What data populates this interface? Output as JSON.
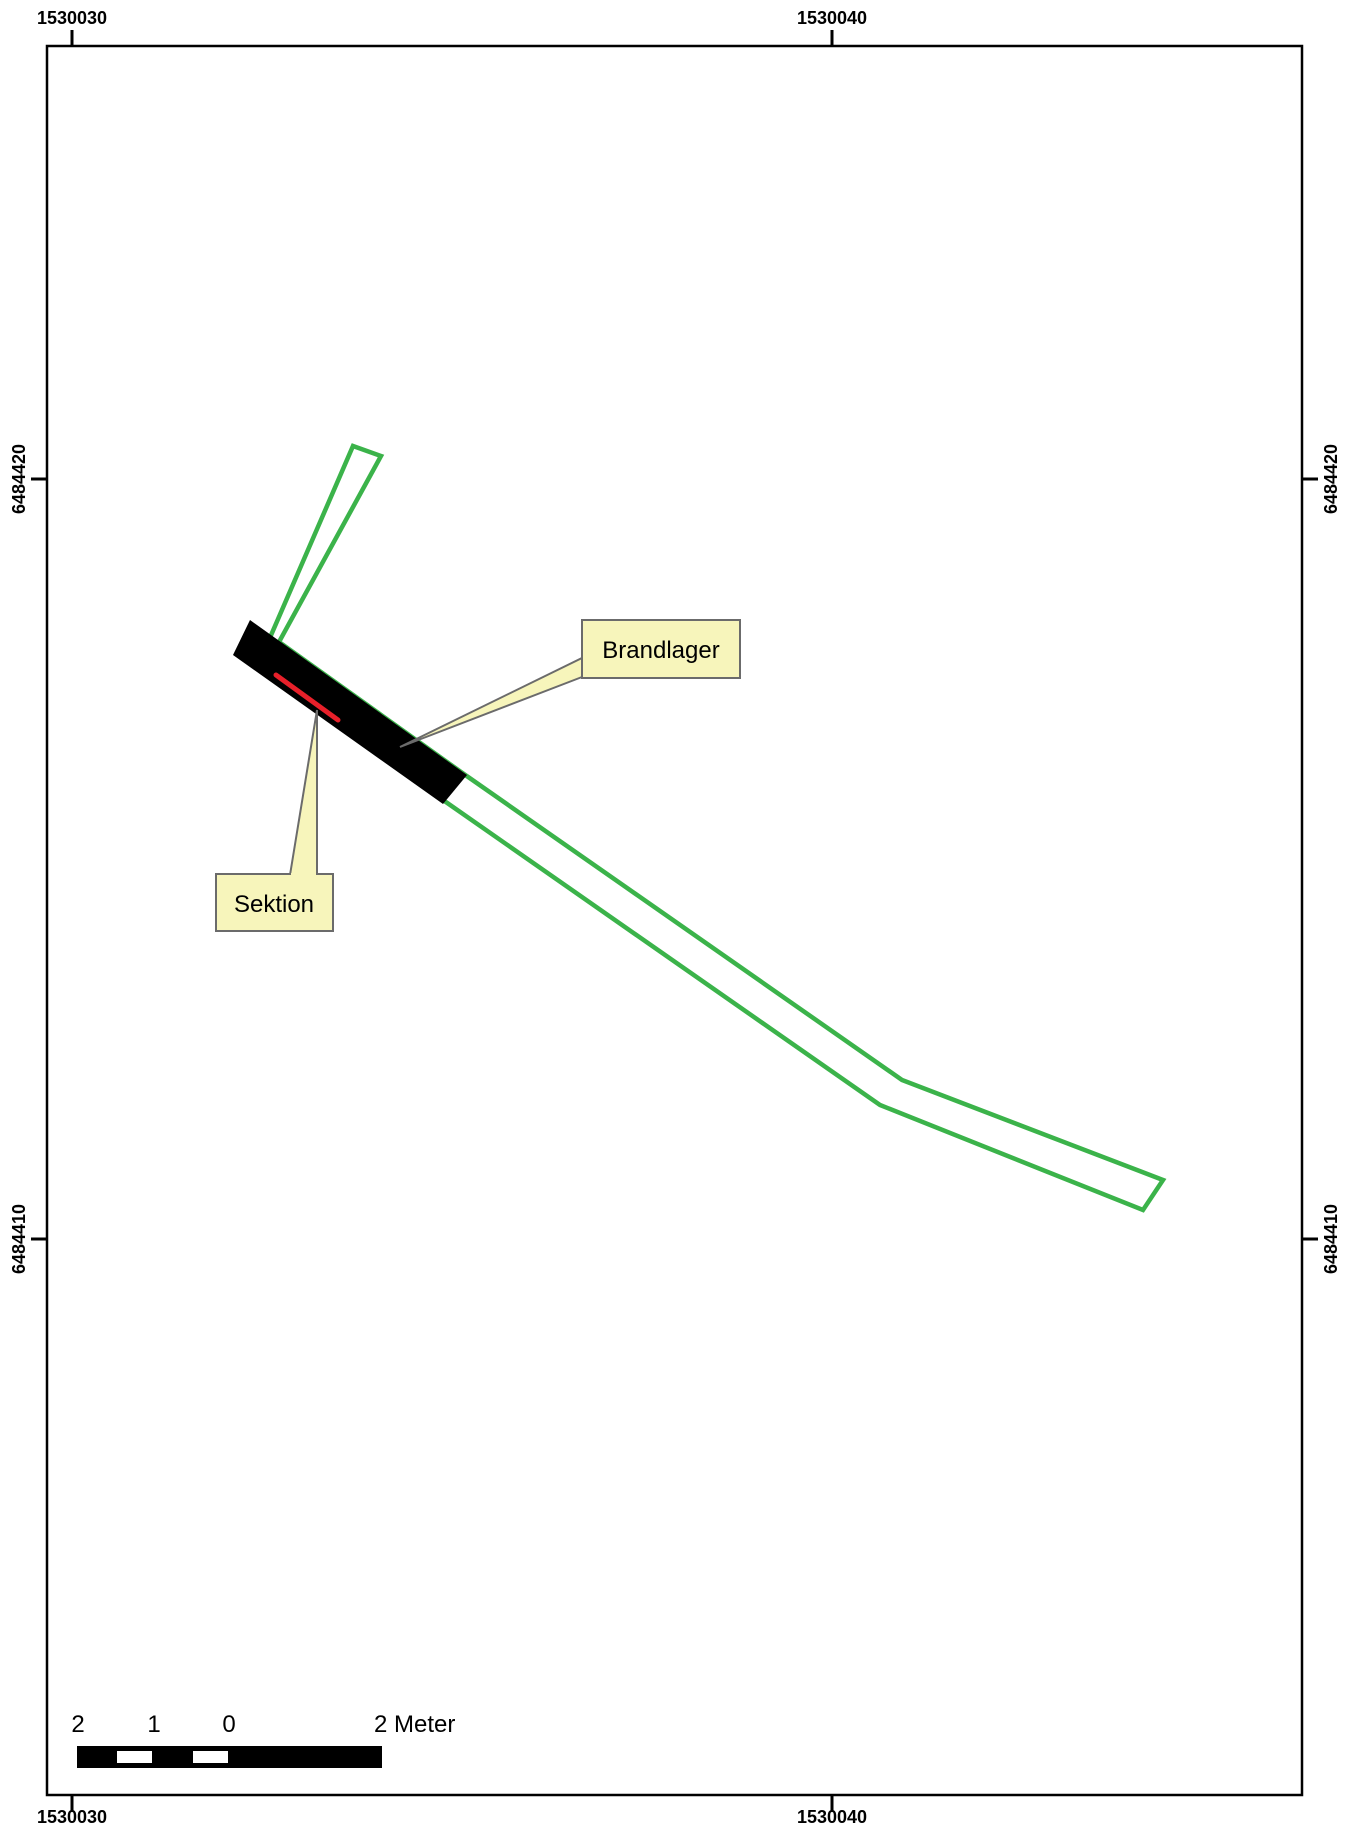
{
  "map": {
    "top_ticks": [
      "1530030",
      "1530040"
    ],
    "bottom_ticks": [
      "1530030",
      "1530040"
    ],
    "left_ticks": [
      "6484420",
      "6484410"
    ],
    "right_ticks": [
      "6484420",
      "6484410"
    ]
  },
  "callouts": {
    "brandlager": "Brandlager",
    "sektion": "Sektion"
  },
  "scalebar": {
    "labels": [
      "2",
      "1",
      "0",
      "2 Meter"
    ]
  },
  "colors": {
    "trench_outline": "#3bb34a",
    "section_line": "#e8202a",
    "burn_layer": "#000000",
    "callout_fill": "#f7f5bb",
    "callout_border": "#6b6b6b",
    "frame": "#000000"
  }
}
